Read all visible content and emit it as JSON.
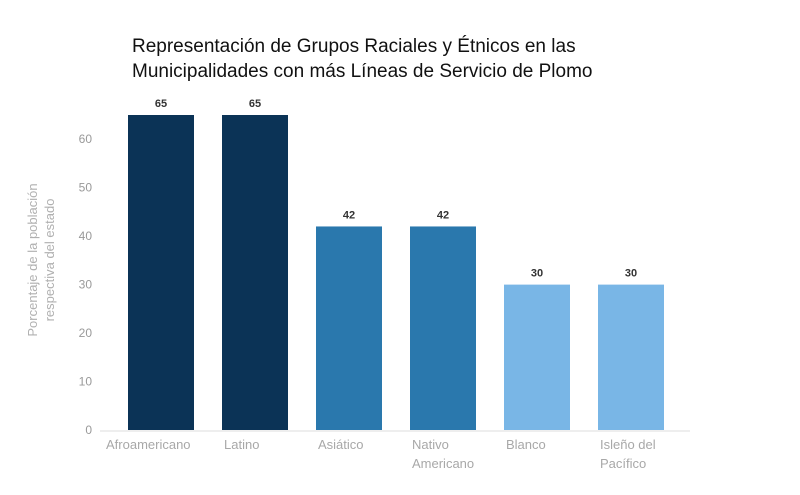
{
  "chart_data": {
    "type": "bar",
    "title_lines": [
      "Representación de Grupos Raciales y Étnicos en las",
      "Municipalidades con más Líneas de Servicio de Plomo"
    ],
    "ylabel_lines": [
      "Porcentaje de la población",
      "respectiva del estado"
    ],
    "xlabel": "",
    "categories": [
      [
        "Afroamericano"
      ],
      [
        "Latino"
      ],
      [
        "Asiático"
      ],
      [
        "Nativo",
        "Americano"
      ],
      [
        "Blanco"
      ],
      [
        "Isleño del",
        "Pacífico"
      ]
    ],
    "values": [
      65,
      65,
      42,
      42,
      30,
      30
    ],
    "data_labels": [
      "65",
      "65",
      "42",
      "42",
      "30",
      "30"
    ],
    "yticks": [
      0,
      10,
      20,
      30,
      40,
      50,
      60
    ],
    "ylim": [
      0,
      65
    ],
    "grid": false,
    "colors": [
      "#0b3356",
      "#0b3356",
      "#2a78ad",
      "#2a78ad",
      "#79b6e6",
      "#79b6e6"
    ]
  }
}
